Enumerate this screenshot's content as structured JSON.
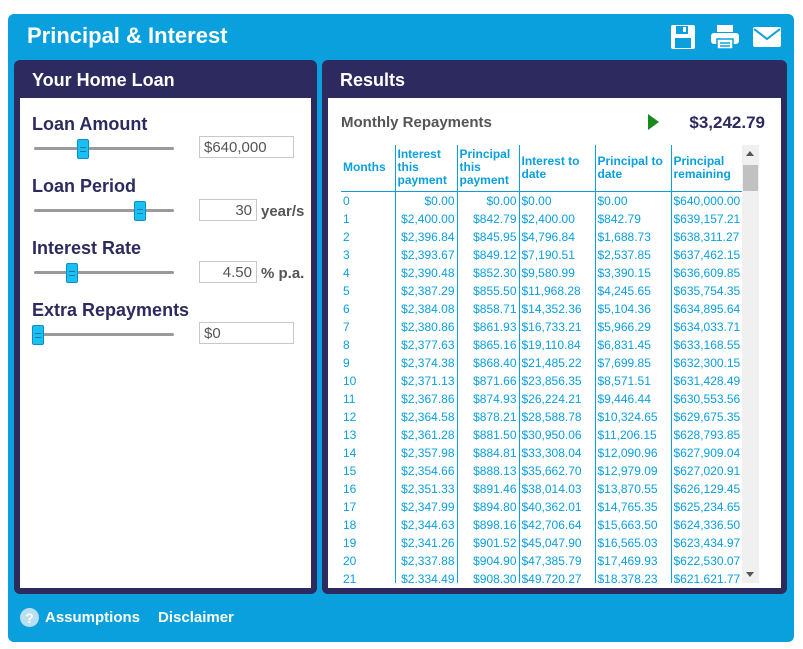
{
  "app": {
    "title": "Principal & Interest"
  },
  "toolbar": {
    "icons": [
      "save-icon",
      "print-icon",
      "email-icon"
    ]
  },
  "left": {
    "title": "Your Home Loan",
    "amount": {
      "label": "Loan Amount",
      "value": "$640,000",
      "level": 0.35
    },
    "period": {
      "label": "Loan Period",
      "value": "30",
      "unit": "year/s",
      "level": 0.76
    },
    "rate": {
      "label": "Interest Rate",
      "value": "4.50",
      "unit": "% p.a.",
      "level": 0.27
    },
    "extra": {
      "label": "Extra Repayments",
      "value": "$0",
      "level": 0.03
    }
  },
  "results": {
    "title": "Results",
    "summary_label": "Monthly Repayments",
    "summary_value": "$3,242.79",
    "columns": [
      "Months",
      "Interest this payment",
      "Principal this payment",
      "Interest to date",
      "Principal to date",
      "Principal remaining"
    ],
    "rows": [
      [
        "0",
        "$0.00",
        "$0.00",
        "$0.00",
        "$0.00",
        "$640,000.00"
      ],
      [
        "1",
        "$2,400.00",
        "$842.79",
        "$2,400.00",
        "$842.79",
        "$639,157.21"
      ],
      [
        "2",
        "$2,396.84",
        "$845.95",
        "$4,796.84",
        "$1,688.73",
        "$638,311.27"
      ],
      [
        "3",
        "$2,393.67",
        "$849.12",
        "$7,190.51",
        "$2,537.85",
        "$637,462.15"
      ],
      [
        "4",
        "$2,390.48",
        "$852.30",
        "$9,580.99",
        "$3,390.15",
        "$636,609.85"
      ],
      [
        "5",
        "$2,387.29",
        "$855.50",
        "$11,968.28",
        "$4,245.65",
        "$635,754.35"
      ],
      [
        "6",
        "$2,384.08",
        "$858.71",
        "$14,352.36",
        "$5,104.36",
        "$634,895.64"
      ],
      [
        "7",
        "$2,380.86",
        "$861.93",
        "$16,733.21",
        "$5,966.29",
        "$634,033.71"
      ],
      [
        "8",
        "$2,377.63",
        "$865.16",
        "$19,110.84",
        "$6,831.45",
        "$633,168.55"
      ],
      [
        "9",
        "$2,374.38",
        "$868.40",
        "$21,485.22",
        "$7,699.85",
        "$632,300.15"
      ],
      [
        "10",
        "$2,371.13",
        "$871.66",
        "$23,856.35",
        "$8,571.51",
        "$631,428.49"
      ],
      [
        "11",
        "$2,367.86",
        "$874.93",
        "$26,224.21",
        "$9,446.44",
        "$630,553.56"
      ],
      [
        "12",
        "$2,364.58",
        "$878.21",
        "$28,588.78",
        "$10,324.65",
        "$629,675.35"
      ],
      [
        "13",
        "$2,361.28",
        "$881.50",
        "$30,950.06",
        "$11,206.15",
        "$628,793.85"
      ],
      [
        "14",
        "$2,357.98",
        "$884.81",
        "$33,308.04",
        "$12,090.96",
        "$627,909.04"
      ],
      [
        "15",
        "$2,354.66",
        "$888.13",
        "$35,662.70",
        "$12,979.09",
        "$627,020.91"
      ],
      [
        "16",
        "$2,351.33",
        "$891.46",
        "$38,014.03",
        "$13,870.55",
        "$626,129.45"
      ],
      [
        "17",
        "$2,347.99",
        "$894.80",
        "$40,362.01",
        "$14,765.35",
        "$625,234.65"
      ],
      [
        "18",
        "$2,344.63",
        "$898.16",
        "$42,706.64",
        "$15,663.50",
        "$624,336.50"
      ],
      [
        "19",
        "$2,341.26",
        "$901.52",
        "$45,047.90",
        "$16,565.03",
        "$623,434.97"
      ],
      [
        "20",
        "$2,337.88",
        "$904.90",
        "$47,385.79",
        "$17,469.93",
        "$622,530.07"
      ],
      [
        "21",
        "$2,334.49",
        "$908.30",
        "$49,720.27",
        "$18,378.23",
        "$621,621.77"
      ]
    ]
  },
  "footer": {
    "assumptions": "Assumptions",
    "disclaimer": "Disclaimer",
    "help_glyph": "?"
  },
  "colors": {
    "accent": "#0aa0dd",
    "panel": "#2c2a5e",
    "arrow": "#178a1a"
  }
}
